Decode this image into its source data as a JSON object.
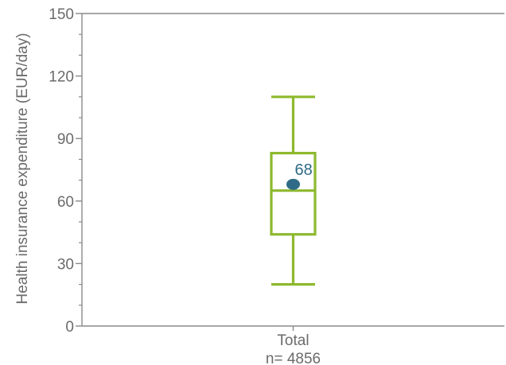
{
  "chart_data": {
    "type": "box",
    "ylabel": "Health insurance expenditure  (EUR/day)",
    "ylim": [
      0,
      150
    ],
    "yticks": [
      "0",
      "30",
      "60",
      "90",
      "120",
      "150"
    ],
    "categories": [
      "Total"
    ],
    "sample_size_label": "n= 4856",
    "boxes": [
      {
        "category": "Total",
        "whisker_low": 20,
        "q1": 44,
        "median": 65,
        "q3": 83,
        "whisker_high": 110,
        "mean": 68,
        "mean_label": "68"
      }
    ],
    "grid": false,
    "colors": {
      "box": "#8db92e",
      "mean_marker": "#2f6b86",
      "axis": "#8a8a8a",
      "text": "#6b6b6b"
    }
  }
}
